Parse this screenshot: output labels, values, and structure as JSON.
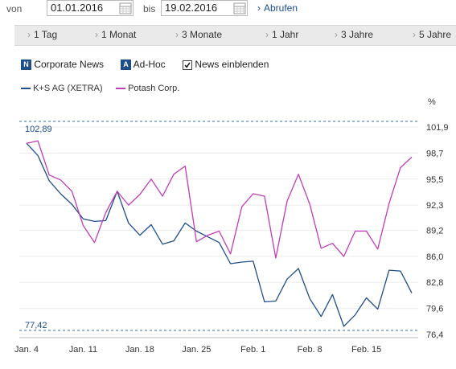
{
  "controls": {
    "from_label": "von",
    "from_date": "01.01.2016",
    "to_label": "bis",
    "to_date": "19.02.2016",
    "submit_label": "Abrufen"
  },
  "tabs": [
    {
      "label": "1 Tag"
    },
    {
      "label": "1 Monat"
    },
    {
      "label": "3 Monate"
    },
    {
      "label": "1 Jahr"
    },
    {
      "label": "3 Jahre"
    },
    {
      "label": "5 Jahre"
    }
  ],
  "filters": {
    "corporate_news_badge": "N",
    "corporate_news_label": "Corporate News",
    "adhoc_badge": "A",
    "adhoc_label": "Ad-Hoc",
    "show_news_label": "News einblenden",
    "show_news_checked": true
  },
  "colors": {
    "ks": "#1f4e8c",
    "potash": "#c03cb8",
    "reference": "#5a8ac0",
    "accent": "#1a4f8a"
  },
  "chart_data": {
    "type": "line",
    "unit_label": "%",
    "ylim": [
      76.4,
      101.9
    ],
    "y_ticks": [
      "101,9",
      "98,7",
      "95,5",
      "92,3",
      "89,2",
      "86,0",
      "82,8",
      "79,6",
      "76,4"
    ],
    "x_tick_labels": [
      "Jan. 4",
      "Jan. 11",
      "Jan. 18",
      "Jan. 25",
      "Feb. 1",
      "Feb. 8",
      "Feb. 15"
    ],
    "reference_lines": [
      {
        "label": "102,89",
        "value": 102.89
      },
      {
        "label": "77,42",
        "value": 77.42
      }
    ],
    "series": [
      {
        "name": "K+S AG (XETRA)",
        "color": "#1f4e8c",
        "values": [
          99.9,
          98.4,
          95.3,
          93.7,
          92.4,
          90.6,
          90.3,
          90.4,
          94.0,
          90.1,
          88.6,
          89.9,
          87.5,
          87.9,
          90.1,
          89.1,
          88.4,
          87.7,
          85.1,
          85.3,
          85.4,
          80.4,
          80.5,
          83.2,
          84.5,
          80.8,
          78.6,
          81.3,
          77.4,
          78.8,
          80.9,
          79.5,
          84.3,
          84.2,
          81.5
        ]
      },
      {
        "name": "Potash Corp.",
        "color": "#c03cb8",
        "values": [
          99.9,
          100.2,
          96.0,
          95.4,
          94.0,
          89.8,
          87.7,
          91.4,
          94.0,
          92.3,
          93.6,
          95.5,
          93.4,
          96.1,
          97.1,
          87.8,
          88.6,
          89.1,
          86.3,
          92.1,
          93.7,
          93.4,
          85.8,
          92.8,
          96.1,
          92.4,
          87.0,
          87.6,
          86.0,
          89.1,
          89.1,
          86.9,
          92.5,
          96.9,
          98.2
        ]
      }
    ]
  }
}
